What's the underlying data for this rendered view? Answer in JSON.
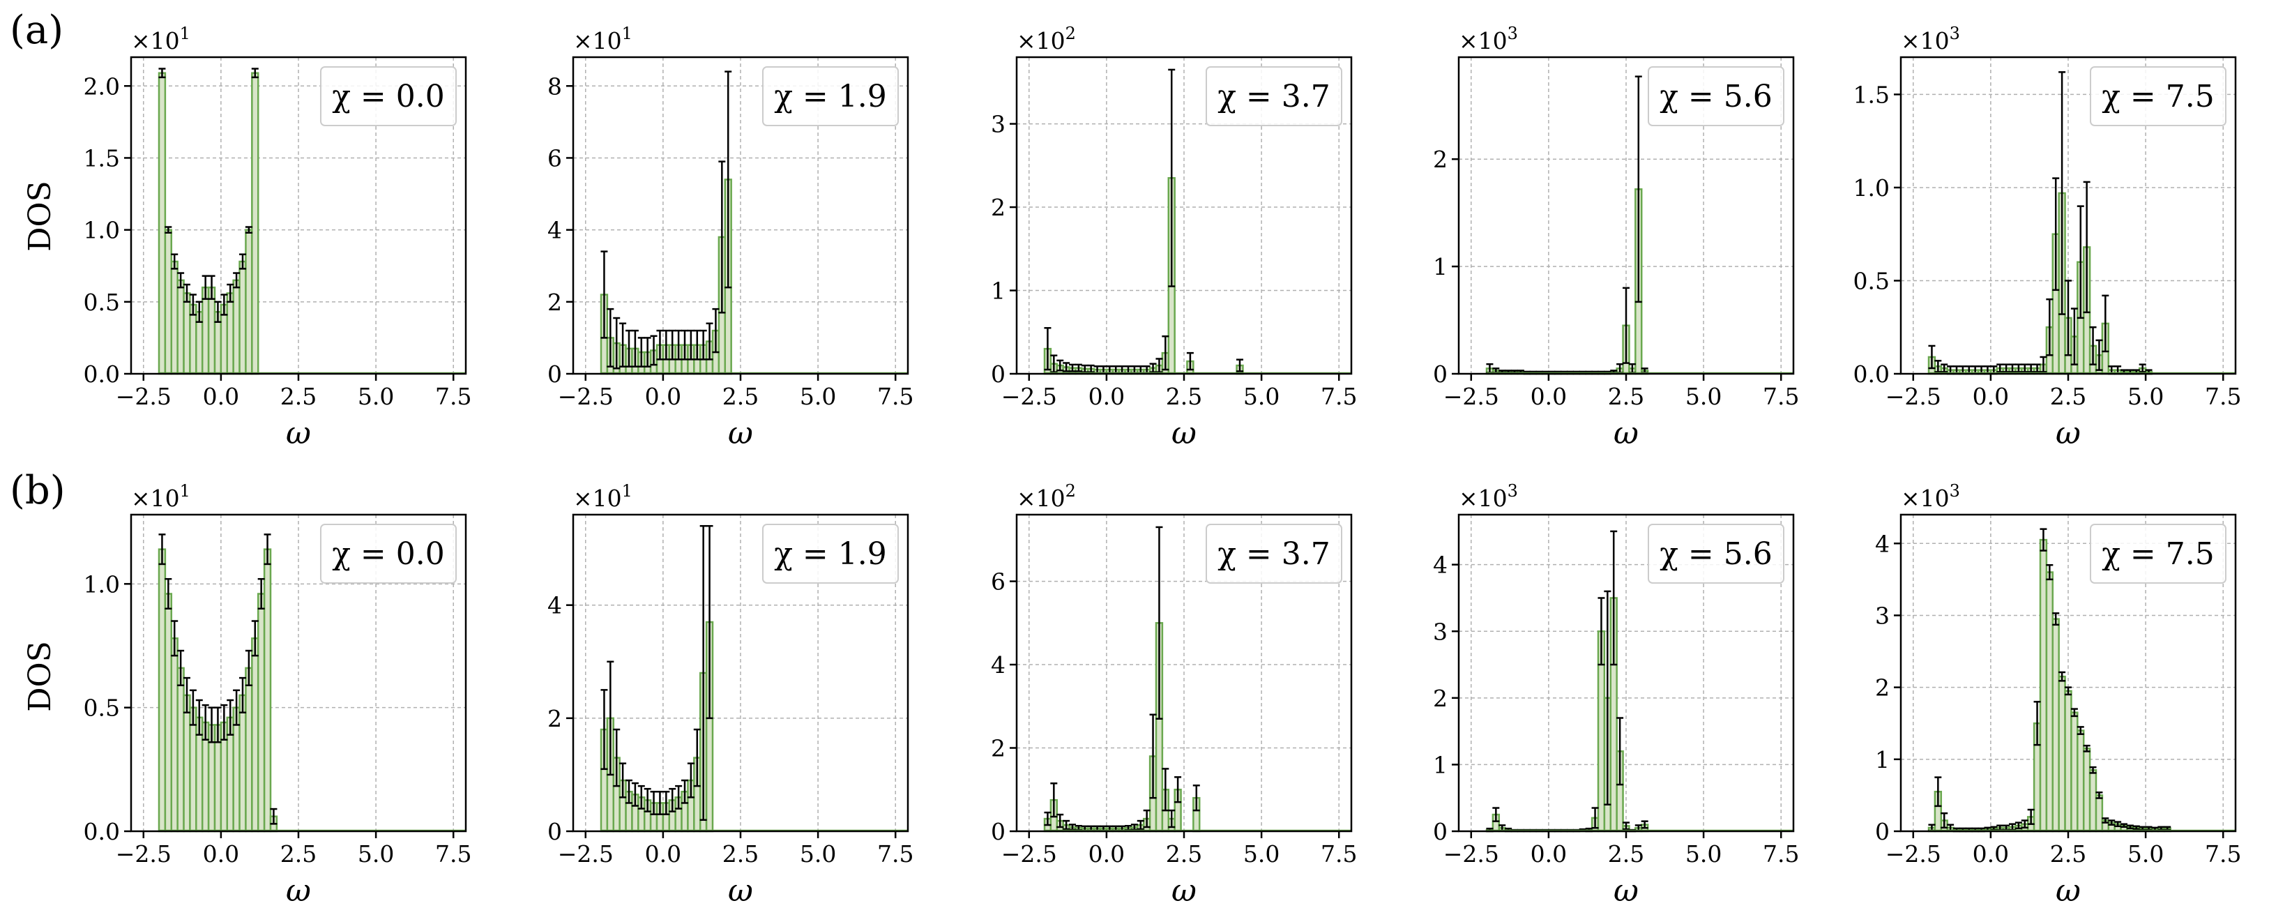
{
  "figure": {
    "row_labels": [
      "(a)",
      "(b)"
    ],
    "ylabel": "DOS",
    "xlabel": "ω",
    "x_ticks": [
      "−2.5",
      "0.0",
      "2.5",
      "5.0",
      "7.5"
    ],
    "colors": {
      "fill": "#d9e5c9",
      "edge": "#6aa84f",
      "error": "#000000",
      "grid": "#b0b0b0"
    }
  },
  "chart_data": [
    {
      "type": "bar",
      "row": "a",
      "chi": "χ = 0.0",
      "multiplier": "×10",
      "exponent": "1",
      "xlim": [
        -2.9,
        7.9
      ],
      "ylim": [
        0,
        2.2
      ],
      "y_ticks": [
        0,
        0.5,
        1.0,
        1.5,
        2.0
      ],
      "y_tick_labels": [
        "0.0",
        "0.5",
        "1.0",
        "1.5",
        "2.0"
      ],
      "bin_start": -2.0,
      "bin_width": 0.2,
      "values": [
        2.09,
        1.0,
        0.78,
        0.65,
        0.56,
        0.48,
        0.43,
        0.6,
        0.6,
        0.43,
        0.48,
        0.56,
        0.65,
        0.78,
        1.0,
        2.09
      ],
      "errors": [
        0.03,
        0.02,
        0.05,
        0.05,
        0.06,
        0.07,
        0.07,
        0.08,
        0.08,
        0.07,
        0.07,
        0.06,
        0.05,
        0.05,
        0.02,
        0.03
      ]
    },
    {
      "type": "bar",
      "row": "a",
      "chi": "χ = 1.9",
      "multiplier": "×10",
      "exponent": "1",
      "xlim": [
        -2.9,
        7.9
      ],
      "ylim": [
        0,
        8.8
      ],
      "y_ticks": [
        0,
        2,
        4,
        6,
        8
      ],
      "y_tick_labels": [
        "0",
        "2",
        "4",
        "6",
        "8"
      ],
      "bin_start": -2.0,
      "bin_width": 0.2,
      "values": [
        2.2,
        1.0,
        0.85,
        0.8,
        0.7,
        0.7,
        0.6,
        0.6,
        0.65,
        0.8,
        0.8,
        0.8,
        0.8,
        0.8,
        0.8,
        0.8,
        0.8,
        0.9,
        1.2,
        3.8,
        5.4
      ],
      "errors": [
        1.2,
        0.8,
        0.7,
        0.6,
        0.5,
        0.5,
        0.4,
        0.4,
        0.4,
        0.4,
        0.4,
        0.4,
        0.4,
        0.4,
        0.4,
        0.4,
        0.4,
        0.5,
        0.6,
        2.1,
        3.0
      ]
    },
    {
      "type": "bar",
      "row": "a",
      "chi": "χ = 3.7",
      "multiplier": "×10",
      "exponent": "2",
      "xlim": [
        -2.9,
        7.9
      ],
      "ylim": [
        0,
        3.8
      ],
      "y_ticks": [
        0,
        1,
        2,
        3
      ],
      "y_tick_labels": [
        "0",
        "1",
        "2",
        "3"
      ],
      "bin_start": -2.0,
      "bin_width": 0.2,
      "values": [
        0.3,
        0.12,
        0.1,
        0.08,
        0.07,
        0.07,
        0.06,
        0.06,
        0.05,
        0.05,
        0.05,
        0.05,
        0.05,
        0.05,
        0.05,
        0.05,
        0.05,
        0.07,
        0.1,
        0.25,
        2.35,
        0,
        0,
        0.15,
        0,
        0,
        0,
        0,
        0,
        0,
        0,
        0.1
      ],
      "errors": [
        0.25,
        0.1,
        0.06,
        0.05,
        0.04,
        0.04,
        0.04,
        0.04,
        0.04,
        0.04,
        0.04,
        0.04,
        0.04,
        0.04,
        0.04,
        0.04,
        0.04,
        0.05,
        0.08,
        0.2,
        1.3,
        0,
        0,
        0.1,
        0,
        0,
        0,
        0,
        0,
        0,
        0,
        0.07
      ]
    },
    {
      "type": "bar",
      "row": "a",
      "chi": "χ = 5.6",
      "multiplier": "×10",
      "exponent": "3",
      "xlim": [
        -2.9,
        7.9
      ],
      "ylim": [
        0,
        2.95
      ],
      "y_ticks": [
        0,
        1,
        2
      ],
      "y_tick_labels": [
        "0",
        "1",
        "2"
      ],
      "bin_start": -2.0,
      "bin_width": 0.2,
      "values": [
        0.05,
        0.03,
        0.02,
        0.02,
        0.02,
        0.02,
        0.01,
        0.01,
        0.01,
        0.01,
        0.01,
        0.01,
        0.01,
        0.01,
        0.01,
        0.01,
        0.01,
        0.01,
        0.01,
        0.01,
        0.02,
        0.05,
        0.45,
        0.05,
        1.72,
        0.03
      ],
      "errors": [
        0.04,
        0.02,
        0.01,
        0.01,
        0.01,
        0.01,
        0.01,
        0.01,
        0.01,
        0.01,
        0.01,
        0.01,
        0.01,
        0.01,
        0.01,
        0.01,
        0.01,
        0.01,
        0.01,
        0.01,
        0.01,
        0.04,
        0.35,
        0.04,
        1.05,
        0.02
      ]
    },
    {
      "type": "bar",
      "row": "a",
      "chi": "χ = 7.5",
      "multiplier": "×10",
      "exponent": "3",
      "xlim": [
        -2.9,
        7.9
      ],
      "ylim": [
        0,
        1.7
      ],
      "y_ticks": [
        0,
        0.5,
        1.0,
        1.5
      ],
      "y_tick_labels": [
        "0.0",
        "0.5",
        "1.0",
        "1.5"
      ],
      "bin_start": -2.0,
      "bin_width": 0.2,
      "values": [
        0.09,
        0.04,
        0.03,
        0.02,
        0.02,
        0.02,
        0.02,
        0.02,
        0.02,
        0.02,
        0.02,
        0.03,
        0.03,
        0.03,
        0.03,
        0.03,
        0.03,
        0.03,
        0.05,
        0.25,
        0.75,
        0.97,
        0.3,
        0.2,
        0.6,
        0.68,
        0.15,
        0.1,
        0.27,
        0.02,
        0.02,
        0.01,
        0.01,
        0.01,
        0.03,
        0.01
      ],
      "errors": [
        0.06,
        0.03,
        0.02,
        0.02,
        0.02,
        0.02,
        0.02,
        0.02,
        0.02,
        0.02,
        0.02,
        0.02,
        0.02,
        0.02,
        0.02,
        0.02,
        0.02,
        0.02,
        0.04,
        0.15,
        0.3,
        0.65,
        0.2,
        0.15,
        0.3,
        0.35,
        0.1,
        0.08,
        0.15,
        0.02,
        0.02,
        0.01,
        0.01,
        0.01,
        0.02,
        0.01
      ]
    },
    {
      "type": "bar",
      "row": "b",
      "chi": "χ = 0.0",
      "multiplier": "×10",
      "exponent": "1",
      "xlim": [
        -2.9,
        7.9
      ],
      "ylim": [
        0,
        1.28
      ],
      "y_ticks": [
        0,
        0.5,
        1.0
      ],
      "y_tick_labels": [
        "0.0",
        "0.5",
        "1.0"
      ],
      "bin_start": -2.0,
      "bin_width": 0.2,
      "values": [
        1.14,
        0.96,
        0.78,
        0.66,
        0.55,
        0.5,
        0.46,
        0.44,
        0.43,
        0.43,
        0.44,
        0.46,
        0.5,
        0.55,
        0.66,
        0.78,
        0.96,
        1.14,
        0.06
      ],
      "errors": [
        0.06,
        0.06,
        0.07,
        0.07,
        0.07,
        0.07,
        0.07,
        0.07,
        0.07,
        0.07,
        0.07,
        0.07,
        0.07,
        0.07,
        0.07,
        0.07,
        0.06,
        0.06,
        0.03
      ]
    },
    {
      "type": "bar",
      "row": "b",
      "chi": "χ = 1.9",
      "multiplier": "×10",
      "exponent": "1",
      "xlim": [
        -2.9,
        7.9
      ],
      "ylim": [
        0,
        5.6
      ],
      "y_ticks": [
        0,
        2,
        4
      ],
      "y_tick_labels": [
        "0",
        "2",
        "4"
      ],
      "bin_start": -2.0,
      "bin_width": 0.2,
      "values": [
        1.8,
        2.0,
        1.3,
        0.9,
        0.7,
        0.65,
        0.6,
        0.55,
        0.5,
        0.5,
        0.5,
        0.55,
        0.6,
        0.7,
        0.9,
        1.3,
        2.8,
        3.7,
        0
      ],
      "errors": [
        0.7,
        1.0,
        0.5,
        0.3,
        0.2,
        0.2,
        0.2,
        0.2,
        0.2,
        0.2,
        0.2,
        0.2,
        0.2,
        0.2,
        0.3,
        0.5,
        2.6,
        1.7,
        0
      ]
    },
    {
      "type": "bar",
      "row": "b",
      "chi": "χ = 3.7",
      "multiplier": "×10",
      "exponent": "2",
      "xlim": [
        -2.9,
        7.9
      ],
      "ylim": [
        0,
        7.6
      ],
      "y_ticks": [
        0,
        2,
        4,
        6
      ],
      "y_tick_labels": [
        "0",
        "2",
        "4",
        "6"
      ],
      "bin_start": -2.0,
      "bin_width": 0.2,
      "values": [
        0.3,
        0.75,
        0.25,
        0.15,
        0.1,
        0.08,
        0.07,
        0.07,
        0.07,
        0.07,
        0.07,
        0.07,
        0.07,
        0.08,
        0.1,
        0.15,
        0.3,
        1.8,
        5.0,
        1.0,
        0.3,
        1.0,
        0,
        0,
        0.8
      ],
      "errors": [
        0.15,
        0.4,
        0.15,
        0.1,
        0.06,
        0.05,
        0.05,
        0.05,
        0.05,
        0.05,
        0.05,
        0.05,
        0.05,
        0.05,
        0.06,
        0.1,
        0.2,
        1.0,
        2.3,
        0.5,
        0.2,
        0.3,
        0,
        0,
        0.3
      ]
    },
    {
      "type": "bar",
      "row": "b",
      "chi": "χ = 5.6",
      "multiplier": "×10",
      "exponent": "3",
      "xlim": [
        -2.9,
        7.9
      ],
      "ylim": [
        0,
        4.75
      ],
      "y_ticks": [
        0,
        1,
        2,
        3,
        4
      ],
      "y_tick_labels": [
        "0",
        "1",
        "2",
        "3",
        "4"
      ],
      "bin_start": -2.0,
      "bin_width": 0.2,
      "values": [
        0.02,
        0.25,
        0.05,
        0.02,
        0.01,
        0.01,
        0.01,
        0.01,
        0.01,
        0.01,
        0.01,
        0.01,
        0.01,
        0.01,
        0.01,
        0.02,
        0.02,
        0.2,
        3.0,
        2.0,
        3.5,
        1.2,
        0.08,
        0.01,
        0.05,
        0.1
      ],
      "errors": [
        0.02,
        0.1,
        0.04,
        0.02,
        0.01,
        0.01,
        0.01,
        0.01,
        0.01,
        0.01,
        0.01,
        0.01,
        0.01,
        0.01,
        0.01,
        0.01,
        0.02,
        0.15,
        0.5,
        1.6,
        1.0,
        0.5,
        0.05,
        0.01,
        0.04,
        0.05
      ]
    },
    {
      "type": "bar",
      "row": "b",
      "chi": "χ = 7.5",
      "multiplier": "×10",
      "exponent": "3",
      "xlim": [
        -2.9,
        7.9
      ],
      "ylim": [
        0,
        4.4
      ],
      "y_ticks": [
        0,
        1,
        2,
        3,
        4
      ],
      "y_tick_labels": [
        "0",
        "1",
        "2",
        "3",
        "4"
      ],
      "bin_start": -2.0,
      "bin_width": 0.2,
      "values": [
        0.05,
        0.55,
        0.15,
        0.05,
        0.02,
        0.02,
        0.02,
        0.02,
        0.02,
        0.03,
        0.04,
        0.05,
        0.05,
        0.06,
        0.08,
        0.1,
        0.2,
        1.5,
        4.05,
        3.6,
        2.95,
        2.15,
        1.95,
        1.65,
        1.4,
        1.15,
        0.85,
        0.5,
        0.15,
        0.12,
        0.1,
        0.08,
        0.06,
        0.05,
        0.04,
        0.04,
        0.03,
        0.04,
        0.04
      ],
      "errors": [
        0.04,
        0.2,
        0.1,
        0.04,
        0.02,
        0.02,
        0.02,
        0.02,
        0.02,
        0.02,
        0.02,
        0.03,
        0.03,
        0.04,
        0.04,
        0.05,
        0.1,
        0.3,
        0.15,
        0.1,
        0.08,
        0.06,
        0.05,
        0.05,
        0.05,
        0.04,
        0.04,
        0.04,
        0.03,
        0.03,
        0.03,
        0.02,
        0.02,
        0.02,
        0.02,
        0.02,
        0.02,
        0.02,
        0.02
      ]
    }
  ]
}
